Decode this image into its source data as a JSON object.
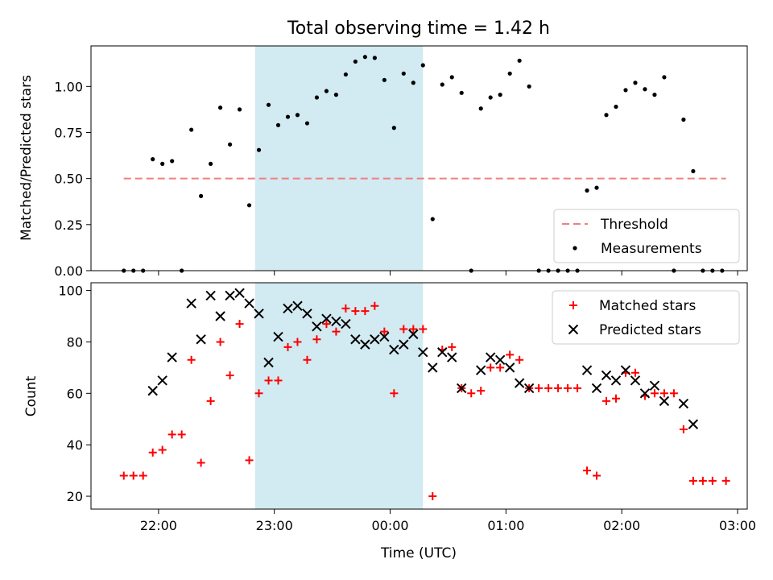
{
  "chart_data": [
    {
      "type": "scatter",
      "title": "Total observing time = 1.42 h",
      "ylabel": "Matched/Predicted stars",
      "xlim": [
        "21:25",
        "03:05"
      ],
      "ylim": [
        0,
        1.22
      ],
      "yticks": [
        "0.00",
        "0.25",
        "0.50",
        "0.75",
        "1.00"
      ],
      "shaded_region": {
        "x_start": "22:50",
        "x_end": "00:17",
        "color": "#add8e6"
      },
      "legend": {
        "position": "lower-right",
        "entries": [
          "Threshold",
          "Measurements"
        ]
      },
      "series": [
        {
          "name": "Threshold",
          "style": "dashed-line",
          "color": "#f08080",
          "points": [
            [
              "21:42",
              0.5
            ],
            [
              "02:54",
              0.5
            ]
          ]
        },
        {
          "name": "Measurements",
          "style": "dot",
          "color": "#000000",
          "points": [
            [
              "21:42",
              0.0
            ],
            [
              "21:47",
              0.0
            ],
            [
              "21:52",
              0.0
            ],
            [
              "21:57",
              0.605
            ],
            [
              "22:02",
              0.58
            ],
            [
              "22:07",
              0.595
            ],
            [
              "22:12",
              0.0
            ],
            [
              "22:17",
              0.765
            ],
            [
              "22:22",
              0.405
            ],
            [
              "22:27",
              0.58
            ],
            [
              "22:32",
              0.885
            ],
            [
              "22:37",
              0.685
            ],
            [
              "22:42",
              0.875
            ],
            [
              "22:47",
              0.355
            ],
            [
              "22:52",
              0.655
            ],
            [
              "22:57",
              0.9
            ],
            [
              "23:02",
              0.79
            ],
            [
              "23:07",
              0.835
            ],
            [
              "23:12",
              0.845
            ],
            [
              "23:17",
              0.8
            ],
            [
              "23:22",
              0.94
            ],
            [
              "23:27",
              0.975
            ],
            [
              "23:32",
              0.955
            ],
            [
              "23:37",
              1.065
            ],
            [
              "23:42",
              1.135
            ],
            [
              "23:47",
              1.16
            ],
            [
              "23:52",
              1.155
            ],
            [
              "23:57",
              1.035
            ],
            [
              "00:02",
              0.775
            ],
            [
              "00:07",
              1.07
            ],
            [
              "00:12",
              1.02
            ],
            [
              "00:17",
              1.115
            ],
            [
              "00:22",
              0.28
            ],
            [
              "00:27",
              1.01
            ],
            [
              "00:32",
              1.05
            ],
            [
              "00:37",
              0.965
            ],
            [
              "00:42",
              0.0
            ],
            [
              "00:47",
              0.88
            ],
            [
              "00:52",
              0.94
            ],
            [
              "00:57",
              0.955
            ],
            [
              "01:02",
              1.07
            ],
            [
              "01:07",
              1.14
            ],
            [
              "01:12",
              1.0
            ],
            [
              "01:17",
              0.0
            ],
            [
              "01:22",
              0.0
            ],
            [
              "01:27",
              0.0
            ],
            [
              "01:32",
              0.0
            ],
            [
              "01:37",
              0.0
            ],
            [
              "01:42",
              0.435
            ],
            [
              "01:47",
              0.45
            ],
            [
              "01:52",
              0.845
            ],
            [
              "01:57",
              0.89
            ],
            [
              "02:02",
              0.98
            ],
            [
              "02:07",
              1.02
            ],
            [
              "02:12",
              0.985
            ],
            [
              "02:17",
              0.955
            ],
            [
              "02:22",
              1.05
            ],
            [
              "02:27",
              0.0
            ],
            [
              "02:32",
              0.82
            ],
            [
              "02:37",
              0.54
            ],
            [
              "02:42",
              0.0
            ],
            [
              "02:47",
              0.0
            ],
            [
              "02:52",
              0.0
            ]
          ]
        }
      ]
    },
    {
      "type": "scatter",
      "xlabel": "Time (UTC)",
      "ylabel": "Count",
      "xlim": [
        "21:25",
        "03:05"
      ],
      "ylim": [
        15,
        103
      ],
      "yticks": [
        "20",
        "40",
        "60",
        "80",
        "100"
      ],
      "xticks": [
        "22:00",
        "23:00",
        "00:00",
        "01:00",
        "02:00",
        "03:00"
      ],
      "shaded_region": {
        "x_start": "22:50",
        "x_end": "00:17",
        "color": "#add8e6"
      },
      "legend": {
        "position": "upper-right",
        "entries": [
          "Matched stars",
          "Predicted stars"
        ]
      },
      "series": [
        {
          "name": "Matched stars",
          "style": "plus",
          "color": "#ff0000",
          "points": [
            [
              "21:42",
              28
            ],
            [
              "21:47",
              28
            ],
            [
              "21:52",
              28
            ],
            [
              "21:57",
              37
            ],
            [
              "22:02",
              38
            ],
            [
              "22:07",
              44
            ],
            [
              "22:12",
              44
            ],
            [
              "22:17",
              73
            ],
            [
              "22:22",
              33
            ],
            [
              "22:27",
              57
            ],
            [
              "22:32",
              80
            ],
            [
              "22:37",
              67
            ],
            [
              "22:42",
              87
            ],
            [
              "22:47",
              34
            ],
            [
              "22:52",
              60
            ],
            [
              "22:57",
              65
            ],
            [
              "23:02",
              65
            ],
            [
              "23:07",
              78
            ],
            [
              "23:12",
              80
            ],
            [
              "23:17",
              73
            ],
            [
              "23:22",
              81
            ],
            [
              "23:27",
              87
            ],
            [
              "23:32",
              84
            ],
            [
              "23:37",
              93
            ],
            [
              "23:42",
              92
            ],
            [
              "23:47",
              92
            ],
            [
              "23:52",
              94
            ],
            [
              "23:57",
              84
            ],
            [
              "00:02",
              60
            ],
            [
              "00:07",
              85
            ],
            [
              "00:12",
              85
            ],
            [
              "00:17",
              85
            ],
            [
              "00:22",
              20
            ],
            [
              "00:27",
              77
            ],
            [
              "00:32",
              78
            ],
            [
              "00:37",
              62
            ],
            [
              "00:42",
              60
            ],
            [
              "00:47",
              61
            ],
            [
              "00:52",
              70
            ],
            [
              "00:57",
              70
            ],
            [
              "01:02",
              75
            ],
            [
              "01:07",
              73
            ],
            [
              "01:12",
              62
            ],
            [
              "01:17",
              62
            ],
            [
              "01:22",
              62
            ],
            [
              "01:27",
              62
            ],
            [
              "01:32",
              62
            ],
            [
              "01:37",
              62
            ],
            [
              "01:42",
              30
            ],
            [
              "01:47",
              28
            ],
            [
              "01:52",
              57
            ],
            [
              "01:57",
              58
            ],
            [
              "02:02",
              68
            ],
            [
              "02:07",
              68
            ],
            [
              "02:12",
              59
            ],
            [
              "02:17",
              60
            ],
            [
              "02:22",
              60
            ],
            [
              "02:27",
              60
            ],
            [
              "02:32",
              46
            ],
            [
              "02:37",
              26
            ],
            [
              "02:42",
              26
            ],
            [
              "02:47",
              26
            ],
            [
              "02:54",
              26
            ]
          ]
        },
        {
          "name": "Predicted stars",
          "style": "x",
          "color": "#000000",
          "points": [
            [
              "21:57",
              61
            ],
            [
              "22:02",
              65
            ],
            [
              "22:07",
              74
            ],
            [
              "22:17",
              95
            ],
            [
              "22:22",
              81
            ],
            [
              "22:27",
              98
            ],
            [
              "22:32",
              90
            ],
            [
              "22:37",
              98
            ],
            [
              "22:42",
              99
            ],
            [
              "22:47",
              95
            ],
            [
              "22:52",
              91
            ],
            [
              "22:57",
              72
            ],
            [
              "23:02",
              82
            ],
            [
              "23:07",
              93
            ],
            [
              "23:12",
              94
            ],
            [
              "23:17",
              91
            ],
            [
              "23:22",
              86
            ],
            [
              "23:27",
              89
            ],
            [
              "23:32",
              88
            ],
            [
              "23:37",
              87
            ],
            [
              "23:42",
              81
            ],
            [
              "23:47",
              79
            ],
            [
              "23:52",
              81
            ],
            [
              "23:57",
              82
            ],
            [
              "00:02",
              77
            ],
            [
              "00:07",
              79
            ],
            [
              "00:12",
              83
            ],
            [
              "00:17",
              76
            ],
            [
              "00:22",
              70
            ],
            [
              "00:27",
              76
            ],
            [
              "00:32",
              74
            ],
            [
              "00:37",
              62
            ],
            [
              "00:47",
              69
            ],
            [
              "00:52",
              74
            ],
            [
              "00:57",
              73
            ],
            [
              "01:02",
              70
            ],
            [
              "01:07",
              64
            ],
            [
              "01:12",
              62
            ],
            [
              "01:42",
              69
            ],
            [
              "01:47",
              62
            ],
            [
              "01:52",
              67
            ],
            [
              "01:57",
              65
            ],
            [
              "02:02",
              69
            ],
            [
              "02:07",
              65
            ],
            [
              "02:12",
              60
            ],
            [
              "02:17",
              63
            ],
            [
              "02:22",
              57
            ],
            [
              "02:32",
              56
            ],
            [
              "02:37",
              48
            ]
          ]
        }
      ]
    }
  ]
}
